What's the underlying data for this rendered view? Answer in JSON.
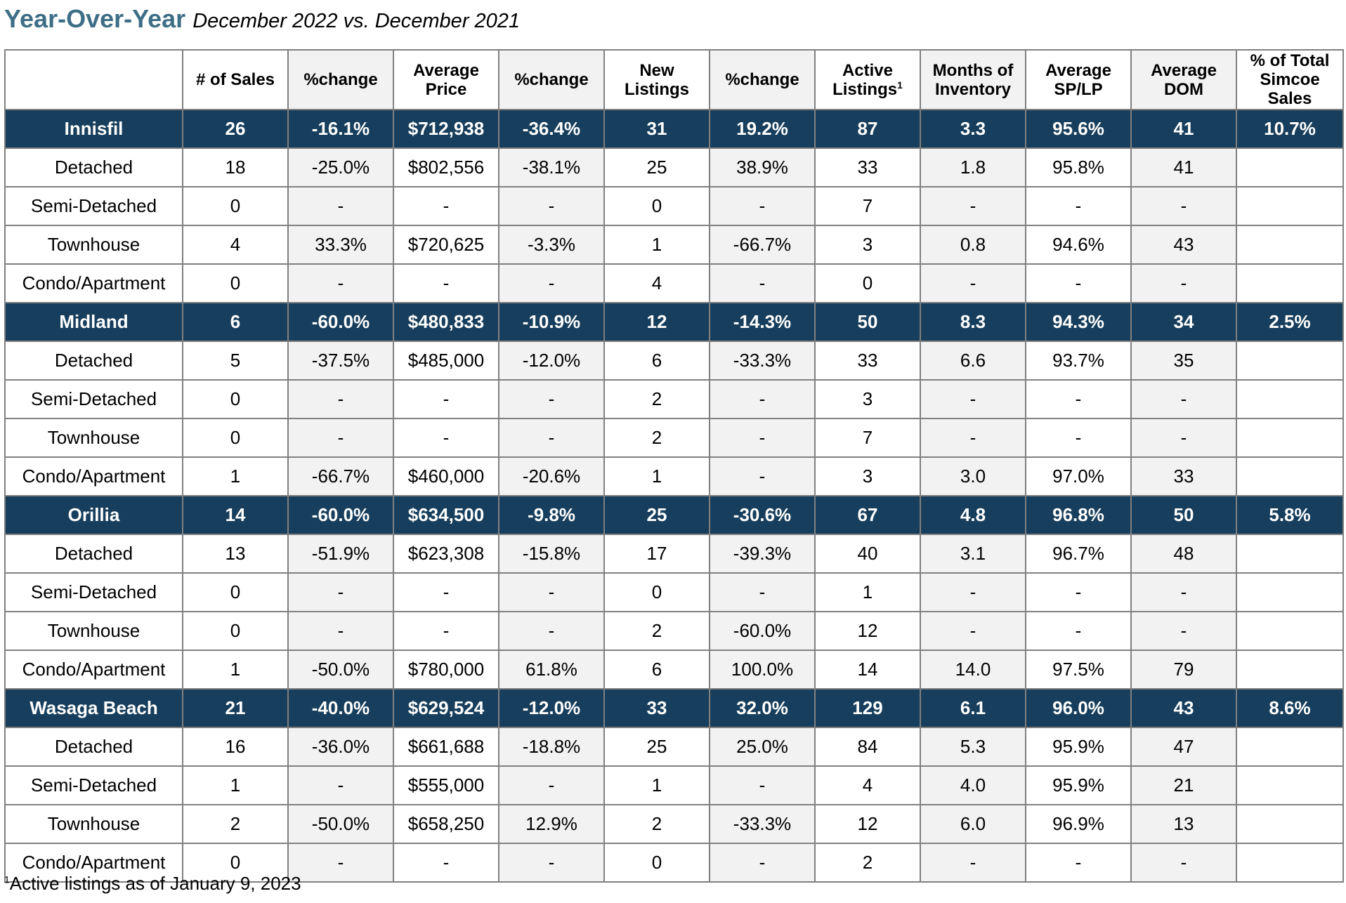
{
  "title": "Year-Over-Year",
  "subtitle": "December 2022 vs. December 2021",
  "columns": [
    {
      "label": "",
      "sup": ""
    },
    {
      "label": "# of Sales",
      "sup": ""
    },
    {
      "label": "%change",
      "sup": ""
    },
    {
      "label": "Average Price",
      "sup": ""
    },
    {
      "label": "%change",
      "sup": ""
    },
    {
      "label": "New Listings",
      "sup": ""
    },
    {
      "label": "%change",
      "sup": ""
    },
    {
      "label": "Active Listings",
      "sup": "1"
    },
    {
      "label": "Months of Inventory",
      "sup": ""
    },
    {
      "label": "Average SP/LP",
      "sup": ""
    },
    {
      "label": "Average DOM",
      "sup": ""
    },
    {
      "label": "% of Total Simcoe Sales",
      "sup": ""
    }
  ],
  "rows": [
    {
      "type": "region",
      "cells": [
        "Innisfil",
        "26",
        "-16.1%",
        "$712,938",
        "-36.4%",
        "31",
        "19.2%",
        "87",
        "3.3",
        "95.6%",
        "41",
        "10.7%"
      ]
    },
    {
      "type": "sub",
      "cells": [
        "Detached",
        "18",
        "-25.0%",
        "$802,556",
        "-38.1%",
        "25",
        "38.9%",
        "33",
        "1.8",
        "95.8%",
        "41",
        ""
      ]
    },
    {
      "type": "sub",
      "cells": [
        "Semi-Detached",
        "0",
        "-",
        "-",
        "-",
        "0",
        "-",
        "7",
        "-",
        "-",
        "-",
        ""
      ]
    },
    {
      "type": "sub",
      "cells": [
        "Townhouse",
        "4",
        "33.3%",
        "$720,625",
        "-3.3%",
        "1",
        "-66.7%",
        "3",
        "0.8",
        "94.6%",
        "43",
        ""
      ]
    },
    {
      "type": "sub",
      "cells": [
        "Condo/Apartment",
        "0",
        "-",
        "-",
        "-",
        "4",
        "-",
        "0",
        "-",
        "-",
        "-",
        ""
      ]
    },
    {
      "type": "region",
      "cells": [
        "Midland",
        "6",
        "-60.0%",
        "$480,833",
        "-10.9%",
        "12",
        "-14.3%",
        "50",
        "8.3",
        "94.3%",
        "34",
        "2.5%"
      ]
    },
    {
      "type": "sub",
      "cells": [
        "Detached",
        "5",
        "-37.5%",
        "$485,000",
        "-12.0%",
        "6",
        "-33.3%",
        "33",
        "6.6",
        "93.7%",
        "35",
        ""
      ]
    },
    {
      "type": "sub",
      "cells": [
        "Semi-Detached",
        "0",
        "-",
        "-",
        "-",
        "2",
        "-",
        "3",
        "-",
        "-",
        "-",
        ""
      ]
    },
    {
      "type": "sub",
      "cells": [
        "Townhouse",
        "0",
        "-",
        "-",
        "-",
        "2",
        "-",
        "7",
        "-",
        "-",
        "-",
        ""
      ]
    },
    {
      "type": "sub",
      "cells": [
        "Condo/Apartment",
        "1",
        "-66.7%",
        "$460,000",
        "-20.6%",
        "1",
        "-",
        "3",
        "3.0",
        "97.0%",
        "33",
        ""
      ]
    },
    {
      "type": "region",
      "cells": [
        "Orillia",
        "14",
        "-60.0%",
        "$634,500",
        "-9.8%",
        "25",
        "-30.6%",
        "67",
        "4.8",
        "96.8%",
        "50",
        "5.8%"
      ]
    },
    {
      "type": "sub",
      "cells": [
        "Detached",
        "13",
        "-51.9%",
        "$623,308",
        "-15.8%",
        "17",
        "-39.3%",
        "40",
        "3.1",
        "96.7%",
        "48",
        ""
      ]
    },
    {
      "type": "sub",
      "cells": [
        "Semi-Detached",
        "0",
        "-",
        "-",
        "-",
        "0",
        "-",
        "1",
        "-",
        "-",
        "-",
        ""
      ]
    },
    {
      "type": "sub",
      "cells": [
        "Townhouse",
        "0",
        "-",
        "-",
        "-",
        "2",
        "-60.0%",
        "12",
        "-",
        "-",
        "-",
        ""
      ]
    },
    {
      "type": "sub",
      "cells": [
        "Condo/Apartment",
        "1",
        "-50.0%",
        "$780,000",
        "61.8%",
        "6",
        "100.0%",
        "14",
        "14.0",
        "97.5%",
        "79",
        ""
      ]
    },
    {
      "type": "region",
      "cells": [
        "Wasaga Beach",
        "21",
        "-40.0%",
        "$629,524",
        "-12.0%",
        "33",
        "32.0%",
        "129",
        "6.1",
        "96.0%",
        "43",
        "8.6%"
      ]
    },
    {
      "type": "sub",
      "cells": [
        "Detached",
        "16",
        "-36.0%",
        "$661,688",
        "-18.8%",
        "25",
        "25.0%",
        "84",
        "5.3",
        "95.9%",
        "47",
        ""
      ]
    },
    {
      "type": "sub",
      "cells": [
        "Semi-Detached",
        "1",
        "-",
        "$555,000",
        "-",
        "1",
        "-",
        "4",
        "4.0",
        "95.9%",
        "21",
        ""
      ]
    },
    {
      "type": "sub",
      "cells": [
        "Townhouse",
        "2",
        "-50.0%",
        "$658,250",
        "12.9%",
        "2",
        "-33.3%",
        "12",
        "6.0",
        "96.9%",
        "13",
        ""
      ]
    },
    {
      "type": "sub",
      "cells": [
        "Condo/Apartment",
        "0",
        "-",
        "-",
        "-",
        "0",
        "-",
        "2",
        "-",
        "-",
        "-",
        ""
      ]
    }
  ],
  "footnote": {
    "sup": "1",
    "text": "Active listings as of January 9, 2023"
  }
}
